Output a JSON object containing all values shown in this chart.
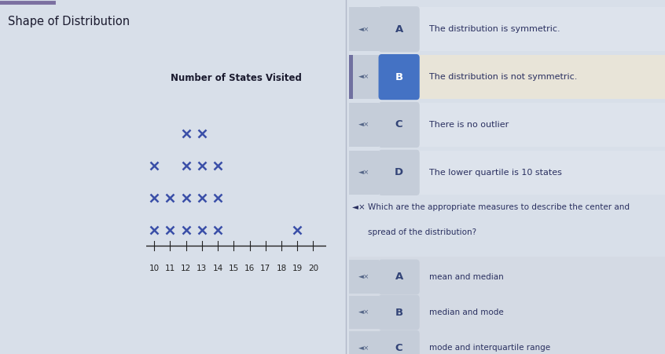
{
  "title": "Shape of Distribution",
  "dot_plot_title": "Number of States Visited",
  "dot_data": {
    "10": 3,
    "11": 2,
    "12": 4,
    "13": 4,
    "14": 3,
    "15": 0,
    "16": 0,
    "17": 0,
    "18": 0,
    "19": 1,
    "20": 0
  },
  "x_ticks": [
    10,
    11,
    12,
    13,
    14,
    15,
    16,
    17,
    18,
    19,
    20
  ],
  "dot_color": "#3a4fa8",
  "dot_markersize": 7,
  "dot_linewidth": 1.8,
  "bg_left": "#d8dfe9",
  "bg_right": "#d8dfe9",
  "title_color": "#1a1a2e",
  "title_fontsize": 10.5,
  "q1_rows": [
    {
      "label": "A",
      "text": "The distribution is symmetric.",
      "selected": false
    },
    {
      "label": "B",
      "text": "The distribution is not symmetric.",
      "selected": true
    },
    {
      "label": "C",
      "text": "There is no outlier",
      "selected": false
    },
    {
      "label": "D",
      "text": "The lower quartile is 10 states",
      "selected": false
    }
  ],
  "q2_text": "Which are the appropriate measures to describe the center and\nspread of the distribution?",
  "q2_rows": [
    {
      "label": "A",
      "text": "mean and median",
      "selected": false
    },
    {
      "label": "B",
      "text": "median and mode",
      "selected": false
    },
    {
      "label": "C",
      "text": "mode and interquartile range",
      "selected": false
    }
  ],
  "selected_bg": "#4472c4",
  "selected_fg": "#ffffff",
  "row_bg_dark": "#c5cdd9",
  "row_bg_light": "#dde3ec",
  "row_bg_selected_outer": "#e8e4d8",
  "label_unsel_bg": "#c5cdd9",
  "label_unsel_fg": "#334477",
  "speaker_color": "#556688",
  "text_color": "#2a3060",
  "q2_box_bg": "#d4dae4",
  "top_bar_color": "#7b6fa0",
  "divider_color": "#7070a0",
  "arrow_color": "#336699"
}
